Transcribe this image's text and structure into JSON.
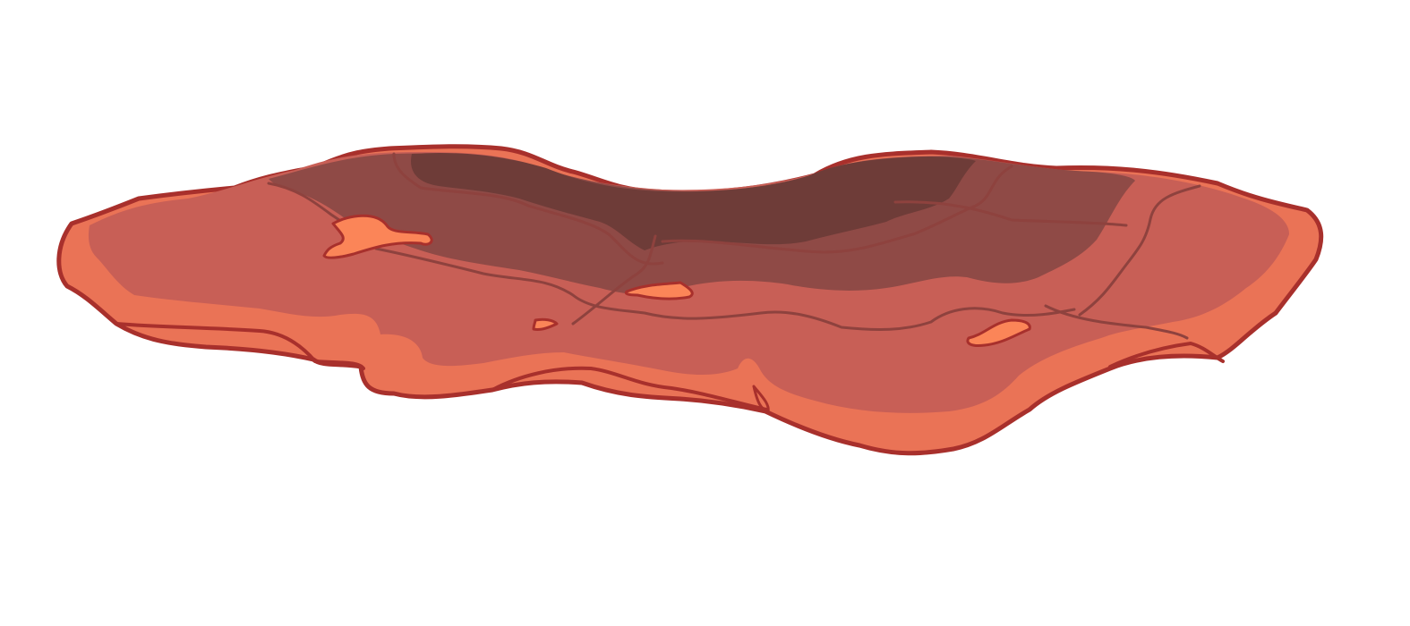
{
  "scene": {
    "background_color": "#ffffff",
    "asset": "rock-platform",
    "colors": {
      "outline": "#a8302c",
      "base_light": "#ea7356",
      "top_mid": "#c85f56",
      "shadow": "#8f4a46",
      "shadow_deep": "#6e3c38",
      "highlight": "#fb8558",
      "crack": "#8e423e"
    }
  }
}
